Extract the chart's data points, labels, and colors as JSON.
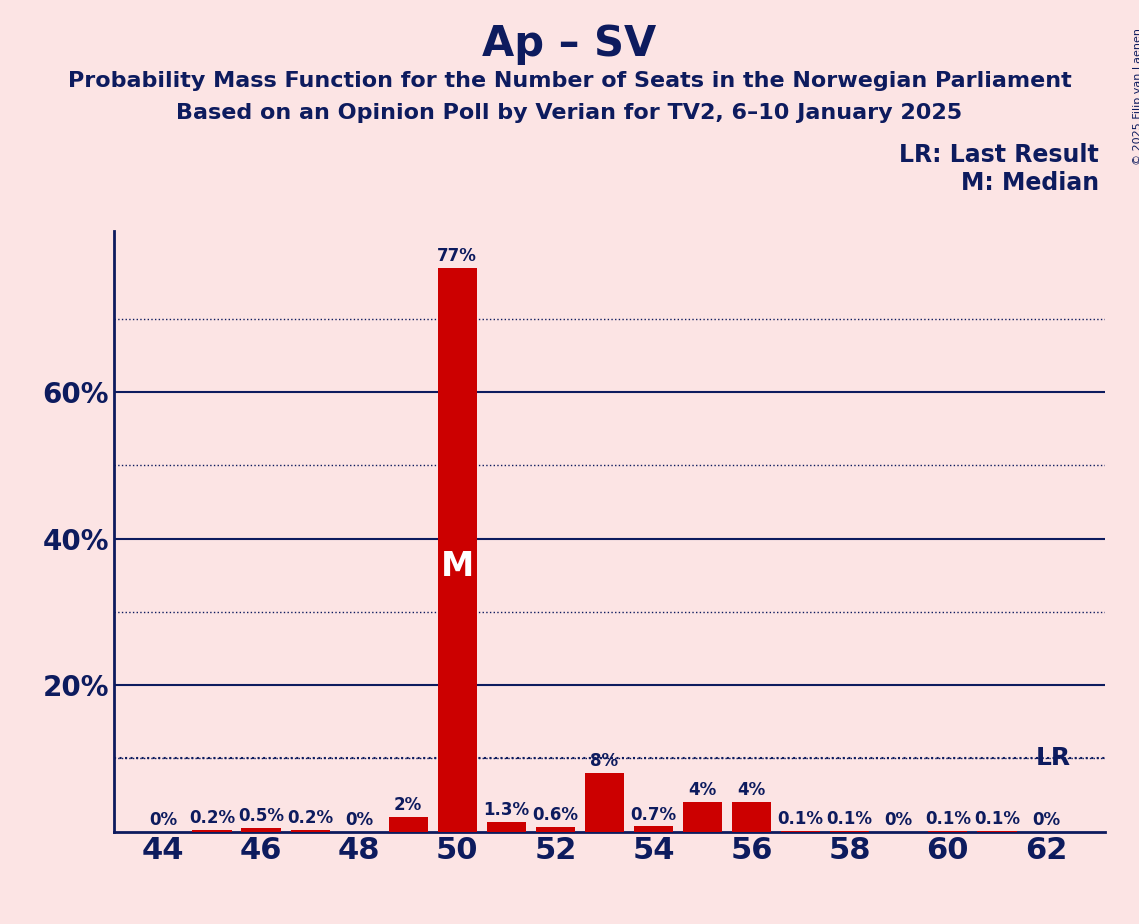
{
  "title": "Ap – SV",
  "subtitle1": "Probability Mass Function for the Number of Seats in the Norwegian Parliament",
  "subtitle2": "Based on an Opinion Poll by Verian for TV2, 6–10 January 2025",
  "copyright": "© 2025 Filip van Laenen",
  "legend_lr": "LR: Last Result",
  "legend_m": "M: Median",
  "seats": [
    44,
    45,
    46,
    47,
    48,
    49,
    50,
    51,
    52,
    53,
    54,
    55,
    56,
    57,
    58,
    59,
    60,
    61,
    62
  ],
  "probabilities": [
    0.0,
    0.2,
    0.5,
    0.2,
    0.0,
    2.0,
    77.0,
    1.3,
    0.6,
    8.0,
    0.7,
    4.0,
    4.0,
    0.1,
    0.1,
    0.0,
    0.1,
    0.1,
    0.0
  ],
  "labels": [
    "0%",
    "0.2%",
    "0.5%",
    "0.2%",
    "0%",
    "2%",
    "77%",
    "1.3%",
    "0.6%",
    "8%",
    "0.7%",
    "4%",
    "4%",
    "0.1%",
    "0.1%",
    "0%",
    "0.1%",
    "0.1%",
    "0%"
  ],
  "median_seat": 50,
  "lr_value": 10.0,
  "bar_color": "#cc0000",
  "background_color": "#fce4e4",
  "text_color": "#0d1b5e",
  "title_fontsize": 30,
  "subtitle_fontsize": 16,
  "bar_label_fontsize": 12,
  "legend_fontsize": 16,
  "ytick_fontsize": 20,
  "xtick_fontsize": 22,
  "ylim": [
    0,
    82
  ],
  "solid_yticks": [
    20,
    40,
    60
  ],
  "dotted_yticks": [
    10,
    30,
    50,
    70
  ],
  "xticks": [
    44,
    46,
    48,
    50,
    52,
    54,
    56,
    58,
    60,
    62
  ]
}
